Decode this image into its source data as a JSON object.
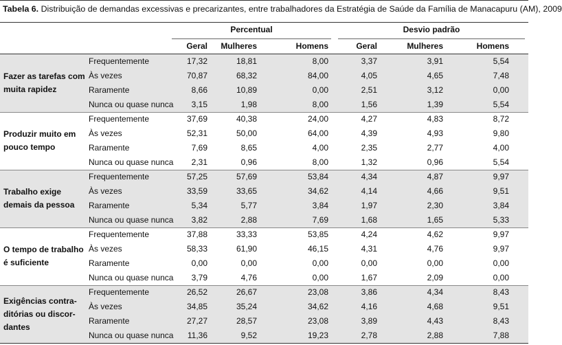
{
  "title_label": "Tabela 6.",
  "title": "Distribuição de demandas excessivas e precarizantes, entre trabalhadores da Estratégia de Saúde da Família de Manacapuru (AM), 2009",
  "header": {
    "groups": [
      "Percentual",
      "Desvio padrão"
    ],
    "columns": [
      "Geral",
      "Mulheres",
      "Homens",
      "Geral",
      "Mulheres",
      "Homens"
    ]
  },
  "groups": [
    {
      "label": [
        "Fazer as tarefas com",
        "muita rapidez"
      ],
      "rows": [
        {
          "label": "Frequentemente",
          "values": [
            "17,32",
            "18,81",
            "8,00",
            "3,37",
            "3,91",
            "5,54"
          ]
        },
        {
          "label": "Às vezes",
          "values": [
            "70,87",
            "68,32",
            "84,00",
            "4,05",
            "4,65",
            "7,48"
          ]
        },
        {
          "label": "Raramente",
          "values": [
            "8,66",
            "10,89",
            "0,00",
            "2,51",
            "3,12",
            "0,00"
          ]
        },
        {
          "label": "Nunca ou quase nunca",
          "values": [
            "3,15",
            "1,98",
            "8,00",
            "1,56",
            "1,39",
            "5,54"
          ]
        }
      ]
    },
    {
      "label": [
        "Produzir muito em",
        "pouco tempo"
      ],
      "rows": [
        {
          "label": "Frequentemente",
          "values": [
            "37,69",
            "40,38",
            "24,00",
            "4,27",
            "4,83",
            "8,72"
          ]
        },
        {
          "label": "Às vezes",
          "values": [
            "52,31",
            "50,00",
            "64,00",
            "4,39",
            "4,93",
            "9,80"
          ]
        },
        {
          "label": "Raramente",
          "values": [
            "7,69",
            "8,65",
            "4,00",
            "2,35",
            "2,77",
            "4,00"
          ]
        },
        {
          "label": "Nunca ou quase nunca",
          "values": [
            "2,31",
            "0,96",
            "8,00",
            "1,32",
            "0,96",
            "5,54"
          ]
        }
      ]
    },
    {
      "label": [
        "Trabalho exige",
        "demais da pessoa"
      ],
      "rows": [
        {
          "label": "Frequentemente",
          "values": [
            "57,25",
            "57,69",
            "53,84",
            "4,34",
            "4,87",
            "9,97"
          ]
        },
        {
          "label": "Às vezes",
          "values": [
            "33,59",
            "33,65",
            "34,62",
            "4,14",
            "4,66",
            "9,51"
          ]
        },
        {
          "label": "Raramente",
          "values": [
            "5,34",
            "5,77",
            "3,84",
            "1,97",
            "2,30",
            "3,84"
          ]
        },
        {
          "label": "Nunca ou quase nunca",
          "values": [
            "3,82",
            "2,88",
            "7,69",
            "1,68",
            "1,65",
            "5,33"
          ]
        }
      ]
    },
    {
      "label": [
        "O tempo de trabalho",
        "é suficiente"
      ],
      "rows": [
        {
          "label": "Frequentemente",
          "values": [
            "37,88",
            "33,33",
            "53,85",
            "4,24",
            "4,62",
            "9,97"
          ]
        },
        {
          "label": "Às vezes",
          "values": [
            "58,33",
            "61,90",
            "46,15",
            "4,31",
            "4,76",
            "9,97"
          ]
        },
        {
          "label": "Raramente",
          "values": [
            "0,00",
            "0,00",
            "0,00",
            "0,00",
            "0,00",
            "0,00"
          ]
        },
        {
          "label": "Nunca ou quase nunca",
          "values": [
            "3,79",
            "4,76",
            "0,00",
            "1,67",
            "2,09",
            "0,00"
          ]
        }
      ]
    },
    {
      "label": [
        "Exigências contra-",
        "ditórias ou discor-",
        "dantes"
      ],
      "rows": [
        {
          "label": "Frequentemente",
          "values": [
            "26,52",
            "26,67",
            "23,08",
            "3,86",
            "4,34",
            "8,43"
          ]
        },
        {
          "label": "Às vezes",
          "values": [
            "34,85",
            "35,24",
            "34,62",
            "4,16",
            "4,68",
            "9,51"
          ]
        },
        {
          "label": "Raramente",
          "values": [
            "27,27",
            "28,57",
            "23,08",
            "3,89",
            "4,43",
            "8,43"
          ]
        },
        {
          "label": "Nunca ou quase nunca",
          "values": [
            "11,36",
            "9,52",
            "19,23",
            "2,78",
            "2,88",
            "7,88"
          ]
        }
      ]
    }
  ]
}
